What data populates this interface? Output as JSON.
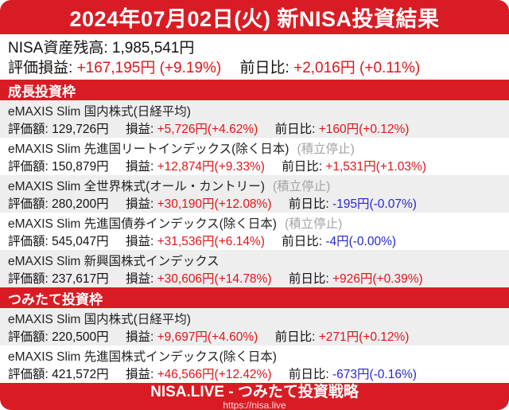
{
  "colors": {
    "brand_red": "#d91c24",
    "positive_text_red": "#e3141a",
    "negative_text_blue": "#2828cc",
    "row_alt_gray": "#eeeeee",
    "suspended_gray": "#a3a3a3"
  },
  "header": {
    "title": "2024年07月02日(火) 新NISA投資結果"
  },
  "summary": {
    "balance_label": "NISA資産残高:",
    "balance_value": "1,985,541円",
    "pl_label": "評価損益:",
    "pl_value": "+167,195円 (+9.19%)",
    "dod_label": "前日比:",
    "dod_value": "+2,016円 (+0.11%)"
  },
  "labels": {
    "valuation": "評価額:",
    "profit": "損益:",
    "day_change": "前日比:",
    "suspended": "(積立停止)"
  },
  "sections": [
    {
      "title": "成長投資枠",
      "funds": [
        {
          "name": "eMAXIS Slim 国内株式(日経平均)",
          "suspended": false,
          "valuation": "129,726円",
          "profit": "+5,726円(+4.62%)",
          "day_change": "+160円(+0.12%)"
        },
        {
          "name": "eMAXIS Slim 先進国リートインデックス(除く日本)",
          "suspended": true,
          "valuation": "150,879円",
          "profit": "+12,874円(+9.33%)",
          "day_change": "+1,531円(+1.03%)"
        },
        {
          "name": "eMAXIS Slim 全世界株式(オール・カントリー)",
          "suspended": true,
          "valuation": "280,200円",
          "profit": "+30,190円(+12.08%)",
          "day_change": "-195円(-0.07%)"
        },
        {
          "name": "eMAXIS Slim 先進国債券インデックス(除く日本)",
          "suspended": true,
          "valuation": "545,047円",
          "profit": "+31,536円(+6.14%)",
          "day_change": "-4円(-0.00%)"
        },
        {
          "name": "eMAXIS Slim 新興国株式インデックス",
          "suspended": false,
          "valuation": "237,617円",
          "profit": "+30,606円(+14.78%)",
          "day_change": "+926円(+0.39%)"
        }
      ]
    },
    {
      "title": "つみたて投資枠",
      "funds": [
        {
          "name": "eMAXIS Slim 国内株式(日経平均)",
          "suspended": false,
          "valuation": "220,500円",
          "profit": "+9,697円(+4.60%)",
          "day_change": "+271円(+0.12%)"
        },
        {
          "name": "eMAXIS Slim 先進国株式インデックス(除く日本)",
          "suspended": false,
          "valuation": "421,572円",
          "profit": "+46,566円(+12.42%)",
          "day_change": "-673円(-0.16%)"
        }
      ]
    }
  ],
  "footer": {
    "title": "NISA.LIVE - つみたて投資戦略",
    "url": "https://nisa.live"
  }
}
